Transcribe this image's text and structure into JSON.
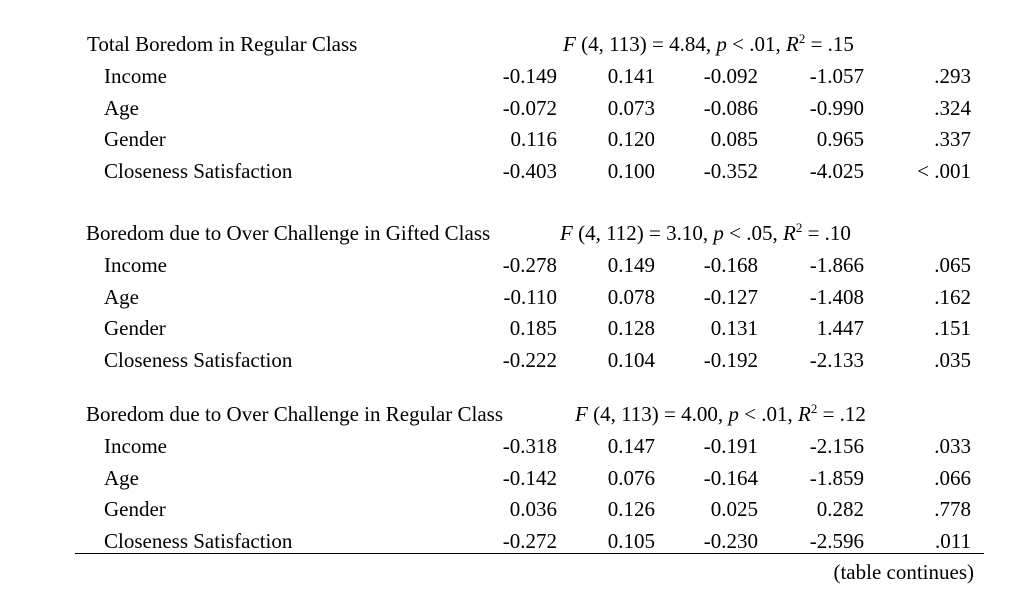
{
  "sections": [
    {
      "title": "Total Boredom in Regular Class",
      "stats": {
        "f_label": "F",
        "df": "(4, 113) = 4.84, ",
        "p_label": "p",
        "p_value": " < .01, ",
        "r_label": "R",
        "r_exp": "2",
        "r_value": " = .15"
      },
      "rows": [
        {
          "label": "Income",
          "values": [
            "-0.149",
            "0.141",
            "-0.092",
            "-1.057",
            ".293"
          ]
        },
        {
          "label": "Age",
          "values": [
            "-0.072",
            "0.073",
            "-0.086",
            "-0.990",
            ".324"
          ]
        },
        {
          "label": "Gender",
          "values": [
            "0.116",
            "0.120",
            "0.085",
            "0.965",
            ".337"
          ]
        },
        {
          "label": "Closeness Satisfaction",
          "values": [
            "-0.403",
            "0.100",
            "-0.352",
            "-4.025",
            "< .001"
          ]
        }
      ]
    },
    {
      "title": "Boredom due to Over Challenge in Gifted Class",
      "stats": {
        "f_label": "F",
        "df": "(4, 112) = 3.10, ",
        "p_label": "p",
        "p_value": " < .05, ",
        "r_label": "R",
        "r_exp": "2",
        "r_value": " = .10"
      },
      "rows": [
        {
          "label": "Income",
          "values": [
            "-0.278",
            "0.149",
            "-0.168",
            "-1.866",
            ".065"
          ]
        },
        {
          "label": "Age",
          "values": [
            "-0.110",
            "0.078",
            "-0.127",
            "-1.408",
            ".162"
          ]
        },
        {
          "label": "Gender",
          "values": [
            "0.185",
            "0.128",
            "0.131",
            "1.447",
            ".151"
          ]
        },
        {
          "label": "Closeness Satisfaction",
          "values": [
            "-0.222",
            "0.104",
            "-0.192",
            "-2.133",
            ".035"
          ]
        }
      ]
    },
    {
      "title": "Boredom due to Over Challenge in Regular Class",
      "stats": {
        "f_label": "F",
        "df": "(4, 113) = 4.00, ",
        "p_label": "p",
        "p_value": " < .01, ",
        "r_label": "R",
        "r_exp": "2",
        "r_value": " = .12"
      },
      "rows": [
        {
          "label": "Income",
          "values": [
            "-0.318",
            "0.147",
            "-0.191",
            "-2.156",
            ".033"
          ]
        },
        {
          "label": "Age",
          "values": [
            "-0.142",
            "0.076",
            "-0.164",
            "-1.859",
            ".066"
          ]
        },
        {
          "label": "Gender",
          "values": [
            "0.036",
            "0.126",
            "0.025",
            "0.282",
            ".778"
          ]
        },
        {
          "label": "Closeness Satisfaction",
          "values": [
            "-0.272",
            "0.105",
            "-0.230",
            "-2.596",
            ".011"
          ]
        }
      ]
    }
  ],
  "footer": {
    "continues": "(table continues)"
  }
}
